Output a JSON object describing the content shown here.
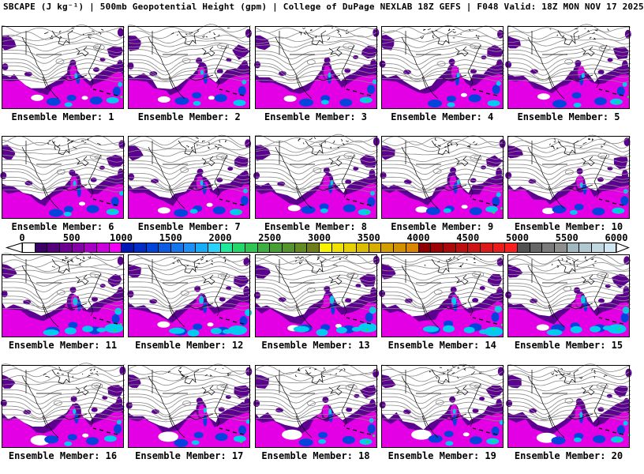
{
  "header": {
    "title": "SBCAPE (J kg⁻¹) | 500mb Geopotential Height (gpm) | College of DuPage NEXLAB 18Z GEFS | F048 Valid: 18Z MON NOV 17 2025"
  },
  "colorbar": {
    "units": "J kg⁻¹",
    "min": 0,
    "max": 6000,
    "cell_step": 125,
    "ticks": [
      "0",
      "500",
      "1000",
      "1500",
      "2000",
      "2500",
      "3000",
      "3500",
      "4000",
      "4500",
      "5000",
      "5500",
      "6000"
    ],
    "cell_colors": [
      "#ffffff",
      "#3c0068",
      "#54007c",
      "#6c0092",
      "#8800a8",
      "#a800c2",
      "#cc00dc",
      "#f400f8",
      "#0018b4",
      "#002cc8",
      "#0044d8",
      "#0c5ce4",
      "#1676ee",
      "#1c90f6",
      "#16acf8",
      "#2cd2fa",
      "#1ee89e",
      "#22d86a",
      "#30c452",
      "#3cb040",
      "#46a034",
      "#55942a",
      "#648a22",
      "#6f7e18",
      "#f8f400",
      "#f0e200",
      "#e6d000",
      "#dcbe00",
      "#d8ae00",
      "#d49e00",
      "#d29000",
      "#da8600",
      "#8e0000",
      "#9c0404",
      "#ac0a0a",
      "#bc1010",
      "#cc1414",
      "#dc1818",
      "#ec1c1c",
      "#fa2020",
      "#525252",
      "#666666",
      "#7a7a7a",
      "#8e8e8e",
      "#a2b8c0",
      "#b2c8d0",
      "#c2d8e0",
      "#d2e8f0"
    ]
  },
  "panels": [
    {
      "member": 1,
      "label": "Ensemble Member: 1"
    },
    {
      "member": 2,
      "label": "Ensemble Member: 2"
    },
    {
      "member": 3,
      "label": "Ensemble Member: 3"
    },
    {
      "member": 4,
      "label": "Ensemble Member: 4"
    },
    {
      "member": 5,
      "label": "Ensemble Member: 5"
    },
    {
      "member": 6,
      "label": "Ensemble Member: 6"
    },
    {
      "member": 7,
      "label": "Ensemble Member: 7"
    },
    {
      "member": 8,
      "label": "Ensemble Member: 8"
    },
    {
      "member": 9,
      "label": "Ensemble Member: 9"
    },
    {
      "member": 10,
      "label": "Ensemble Member: 10"
    },
    {
      "member": 11,
      "label": "Ensemble Member: 11"
    },
    {
      "member": 12,
      "label": "Ensemble Member: 12"
    },
    {
      "member": 13,
      "label": "Ensemble Member: 13"
    },
    {
      "member": 14,
      "label": "Ensemble Member: 14"
    },
    {
      "member": 15,
      "label": "Ensemble Member: 15"
    },
    {
      "member": 16,
      "label": "Ensemble Member: 16"
    },
    {
      "member": 17,
      "label": "Ensemble Member: 17"
    },
    {
      "member": 18,
      "label": "Ensemble Member: 18"
    },
    {
      "member": 19,
      "label": "Ensemble Member: 19"
    },
    {
      "member": 20,
      "label": "Ensemble Member: 20"
    }
  ],
  "map_colors": {
    "background": "#ffffff",
    "border": "#000000",
    "contour": "#8a8a8a",
    "coast": "#000000",
    "cape_fringe": "#5c0090",
    "cape_moderate": "#e400e4",
    "cape_high": "#0444dd",
    "cape_very_high": "#00ccf0",
    "cape_extreme": "#22dc64"
  }
}
